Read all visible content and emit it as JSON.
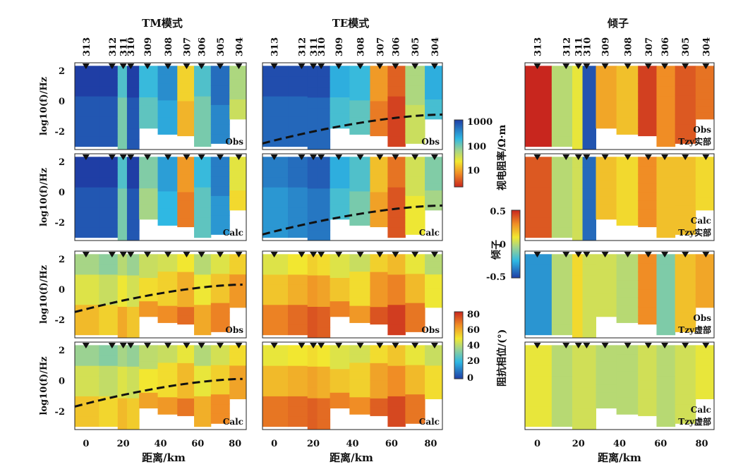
{
  "figure": {
    "columns": [
      "TM模式",
      "TE模式",
      "倾子"
    ],
    "stations": [
      "313",
      "312",
      "311",
      "310",
      "309",
      "308",
      "307",
      "306",
      "305",
      "304"
    ],
    "xlabel": "距离/km",
    "ylabel": "log10(f)/Hz",
    "colorbars": [
      {
        "label": "视电阻率/Ω·m",
        "ticks": [
          "1000",
          "100",
          "10"
        ],
        "log_range": [
          0.5,
          3.2
        ]
      },
      {
        "label": "倾子",
        "ticks": [
          "0.5",
          "0",
          "-0.5"
        ],
        "range": [
          -0.5,
          0.5
        ]
      },
      {
        "label": "阻抗相位/(°)",
        "ticks": [
          "80",
          "60",
          "40",
          "20",
          "0"
        ],
        "range": [
          0,
          90
        ]
      }
    ],
    "panel_labels": {
      "obs": "Obs",
      "calc": "Calc",
      "tzy_real": "Tzy实部",
      "tzy_imag": "Tzy虚部"
    }
  },
  "chart_data": {
    "type": "heatmap",
    "x_unit": "km",
    "y_unit": "log10(f)/Hz",
    "xlim": [
      -6,
      86
    ],
    "ylim": [
      -3.2,
      2.5
    ],
    "xticks": [
      0,
      20,
      40,
      60,
      80
    ],
    "yticks": [
      2,
      0,
      -2
    ],
    "station_positions_km": [
      0,
      14,
      20,
      24,
      33,
      44,
      54,
      62,
      72,
      82
    ],
    "station_freq_range_log10": [
      [
        -3,
        2.3
      ],
      [
        -3,
        2.3
      ],
      [
        -3.2,
        2.3
      ],
      [
        -3.2,
        2.3
      ],
      [
        -1.8,
        2.3
      ],
      [
        -2.2,
        2.3
      ],
      [
        -2.3,
        2.3
      ],
      [
        -3,
        2.3
      ],
      [
        -2.8,
        2.3
      ],
      [
        -1.2,
        2.3
      ]
    ],
    "te_resistivity_boundary_km": [
      -6,
      86
    ],
    "te_resistivity_boundary_log10f": [
      -2.8,
      -0.9
    ],
    "panels": [
      {
        "row": 1,
        "column": "TM模式",
        "kind": "obs",
        "quantity": "apparent_resistivity",
        "log10_rho_by_station": [
          3.1,
          3.1,
          2.2,
          3.1,
          2.3,
          2.6,
          1.3,
          2.2,
          2.8,
          1.8
        ],
        "dashed_boundary": false
      },
      {
        "row": 2,
        "column": "TM模式",
        "kind": "calc",
        "quantity": "apparent_resistivity",
        "log10_rho_by_station": [
          3.1,
          3.1,
          2.2,
          3.1,
          2.0,
          2.5,
          1.0,
          2.3,
          2.7,
          1.5
        ],
        "dashed_boundary": false
      },
      {
        "row": 3,
        "column": "TM模式",
        "kind": "obs",
        "quantity": "impedance_phase",
        "phase_deg_by_station": [
          52,
          48,
          55,
          50,
          58,
          60,
          66,
          55,
          62,
          70
        ],
        "dashed_boundary_km": [
          -6,
          84
        ],
        "dashed_boundary_log10f": [
          -1.5,
          0.3
        ]
      },
      {
        "row": 4,
        "column": "TM模式",
        "kind": "calc",
        "quantity": "impedance_phase",
        "phase_deg_by_station": [
          50,
          47,
          52,
          49,
          56,
          58,
          64,
          54,
          60,
          68
        ],
        "dashed_boundary_km": [
          -6,
          84
        ],
        "dashed_boundary_log10f": [
          -1.7,
          0.1
        ]
      },
      {
        "row": 1,
        "column": "TE模式",
        "kind": "obs",
        "quantity": "apparent_resistivity",
        "log10_rho_by_station": [
          3.0,
          3.0,
          3.0,
          3.0,
          2.4,
          2.3,
          1.0,
          0.7,
          1.8,
          2.4
        ],
        "dashed_boundary": true
      },
      {
        "row": 2,
        "column": "TE模式",
        "kind": "calc",
        "quantity": "apparent_resistivity",
        "log10_rho_by_station": [
          2.7,
          2.8,
          2.9,
          2.9,
          2.4,
          2.2,
          1.2,
          0.8,
          1.6,
          2.0
        ],
        "dashed_boundary": true
      },
      {
        "row": 3,
        "column": "TE模式",
        "kind": "obs",
        "quantity": "impedance_phase",
        "phase_deg_by_station": [
          62,
          66,
          70,
          68,
          62,
          58,
          70,
          74,
          64,
          55
        ],
        "dashed_boundary": false
      },
      {
        "row": 4,
        "column": "TE模式",
        "kind": "calc",
        "quantity": "impedance_phase",
        "phase_deg_by_station": [
          64,
          66,
          68,
          66,
          62,
          60,
          68,
          72,
          64,
          58
        ],
        "dashed_boundary": false
      },
      {
        "row": 1,
        "column": "倾子",
        "kind": "obs",
        "quantity": "Tzy_real",
        "tipper_by_station": [
          0.5,
          0.0,
          0.1,
          -0.45,
          0.25,
          0.2,
          0.45,
          0.3,
          0.4,
          0.35
        ],
        "dashed_boundary": false
      },
      {
        "row": 2,
        "column": "倾子",
        "kind": "calc",
        "quantity": "Tzy_real",
        "tipper_by_station": [
          0.4,
          0.0,
          0.05,
          -0.4,
          0.2,
          0.15,
          0.3,
          0.2,
          0.2,
          0.15
        ],
        "dashed_boundary": false
      },
      {
        "row": 3,
        "column": "倾子",
        "kind": "obs",
        "quantity": "Tzy_imag",
        "tipper_by_station": [
          -0.3,
          0.0,
          0.15,
          0.05,
          0.05,
          0.0,
          0.3,
          -0.1,
          0.2,
          0.25
        ],
        "dashed_boundary": false
      },
      {
        "row": 4,
        "column": "倾子",
        "kind": "calc",
        "quantity": "Tzy_imag",
        "tipper_by_station": [
          0.1,
          0.0,
          0.05,
          0.05,
          0.0,
          0.0,
          0.05,
          0.0,
          0.05,
          0.1
        ],
        "dashed_boundary": false
      }
    ]
  }
}
